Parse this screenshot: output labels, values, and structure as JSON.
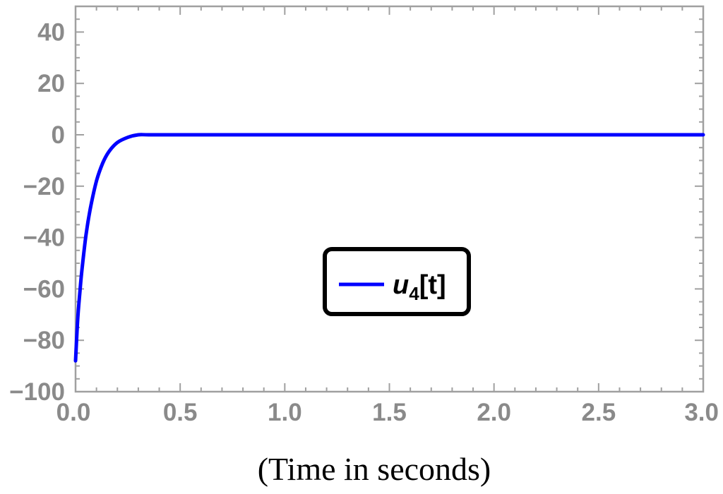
{
  "chart_data": {
    "type": "line",
    "title": "",
    "xlabel": "(Time in seconds)",
    "ylabel": "",
    "xlim": [
      0,
      3
    ],
    "ylim": [
      -100,
      50
    ],
    "x_ticks": [
      0.0,
      0.5,
      1.0,
      1.5,
      2.0,
      2.5,
      3.0
    ],
    "x_tick_labels": [
      "0.0",
      "0.5",
      "1.0",
      "1.5",
      "2.0",
      "2.5",
      "3.0"
    ],
    "y_ticks": [
      -100,
      -80,
      -60,
      -40,
      -20,
      0,
      20,
      40
    ],
    "y_tick_labels": [
      "−100",
      "−80",
      "−60",
      "−40",
      "−20",
      "0",
      "20",
      "40"
    ],
    "grid": false,
    "legend": {
      "placement": "center-right",
      "entries": [
        {
          "symbol": "u",
          "subscript": "4",
          "suffix": "[t]"
        }
      ]
    },
    "series": [
      {
        "name": "u4[t]",
        "color": "#0000ff",
        "x": [
          0.0,
          0.01,
          0.02,
          0.03,
          0.05,
          0.07,
          0.1,
          0.13,
          0.16,
          0.2,
          0.25,
          0.3,
          0.35,
          0.5,
          1.0,
          1.5,
          2.0,
          2.5,
          3.0
        ],
        "y": [
          -88,
          -72,
          -62,
          -53,
          -39,
          -29,
          -18,
          -11,
          -6.5,
          -3,
          -1,
          0,
          0,
          0,
          0,
          0,
          0,
          0,
          0
        ]
      }
    ]
  },
  "colors": {
    "axis": "#a0a0a0",
    "tick_label": "#8a8a8a",
    "series": "#0000ff",
    "legend_border": "#000000"
  }
}
